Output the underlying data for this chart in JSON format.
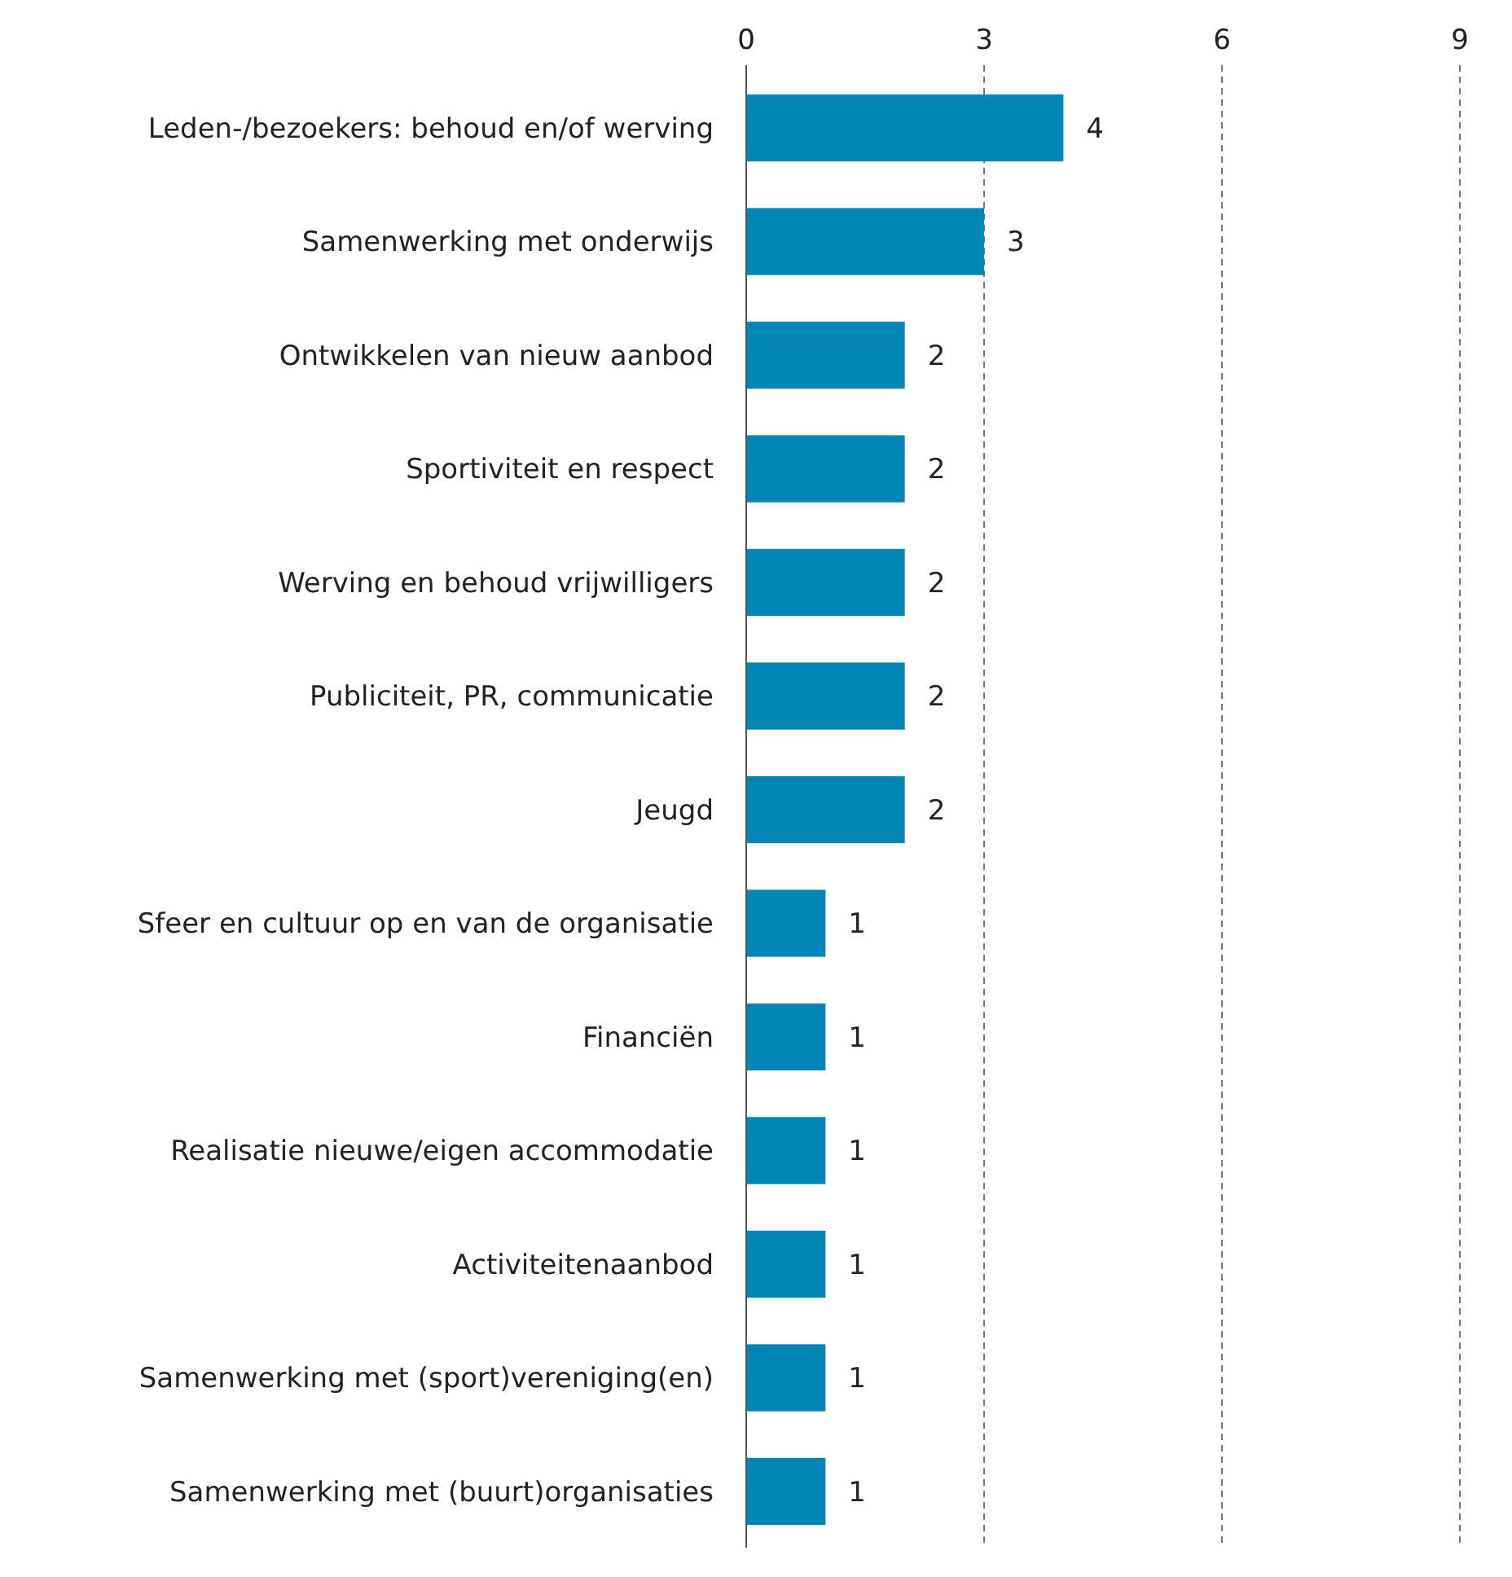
{
  "chart_data": {
    "type": "bar",
    "orientation": "horizontal",
    "categories": [
      "Leden-/bezoekers: behoud en/of werving",
      "Samenwerking met onderwijs",
      "Ontwikkelen van nieuw aanbod",
      "Sportiviteit en respect",
      "Werving en behoud vrijwilligers",
      "Publiciteit, PR, communicatie",
      "Jeugd",
      "Sfeer en cultuur op en van de organisatie",
      "Financiën",
      "Realisatie nieuwe/eigen accommodatie",
      "Activiteitenaanbod",
      "Samenwerking met (sport)vereniging(en)",
      "Samenwerking met (buurt)organisaties"
    ],
    "values": [
      4,
      3,
      2,
      2,
      2,
      2,
      2,
      1,
      1,
      1,
      1,
      1,
      1
    ],
    "color": "#0085b5",
    "xlim": [
      0,
      9
    ],
    "xticks": [
      0,
      3,
      6,
      9
    ],
    "grid": "x",
    "data_labels": true
  }
}
